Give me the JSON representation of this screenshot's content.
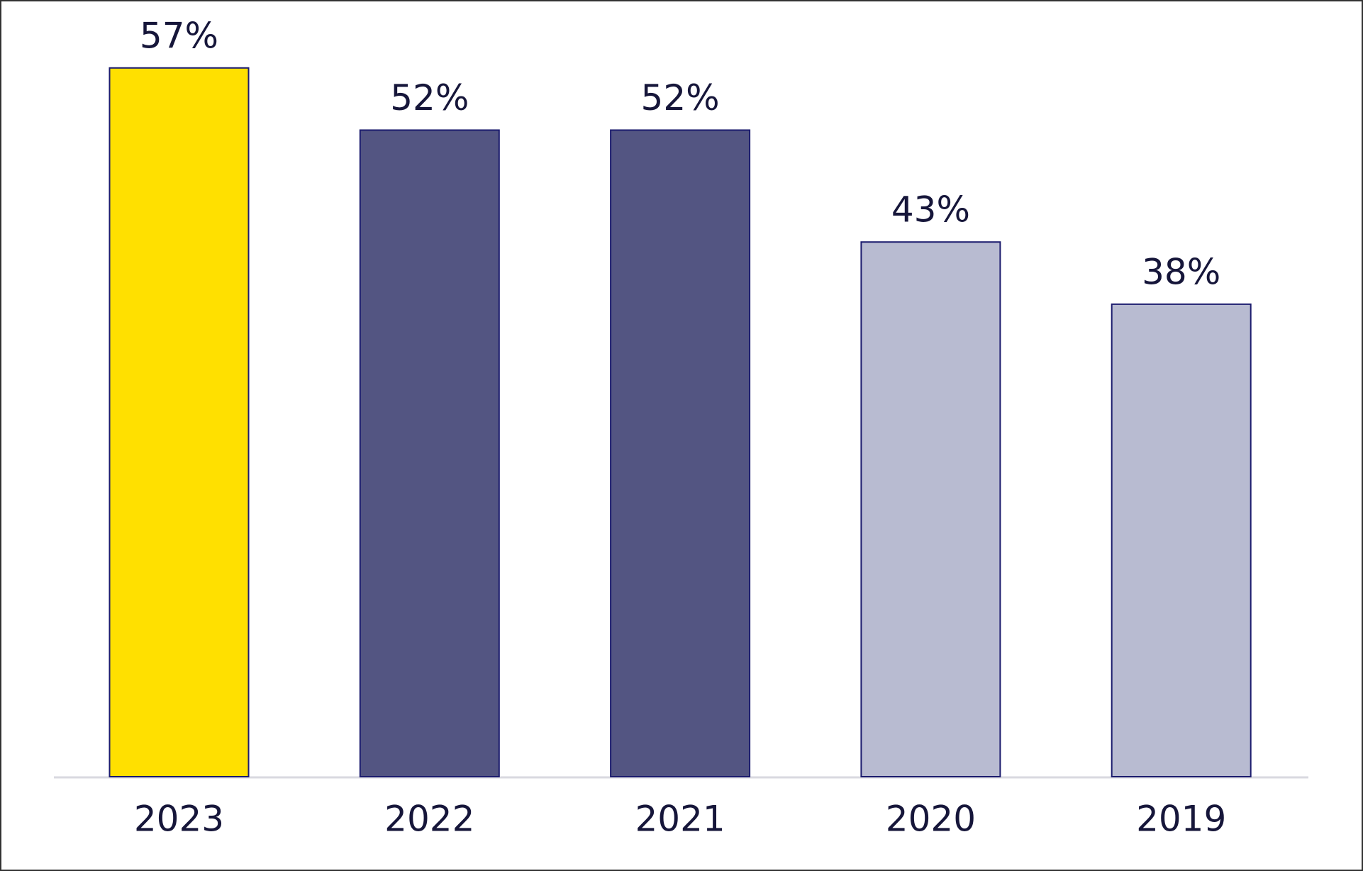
{
  "chart_data": {
    "type": "bar",
    "categories": [
      "2023",
      "2022",
      "2021",
      "2020",
      "2019"
    ],
    "values": [
      57,
      52,
      52,
      43,
      38
    ],
    "value_labels": [
      "57%",
      "52%",
      "52%",
      "43%",
      "38%"
    ],
    "colors": [
      "#ffe000",
      "#535582",
      "#535582",
      "#b8bbd1",
      "#b8bbd1"
    ]
  }
}
